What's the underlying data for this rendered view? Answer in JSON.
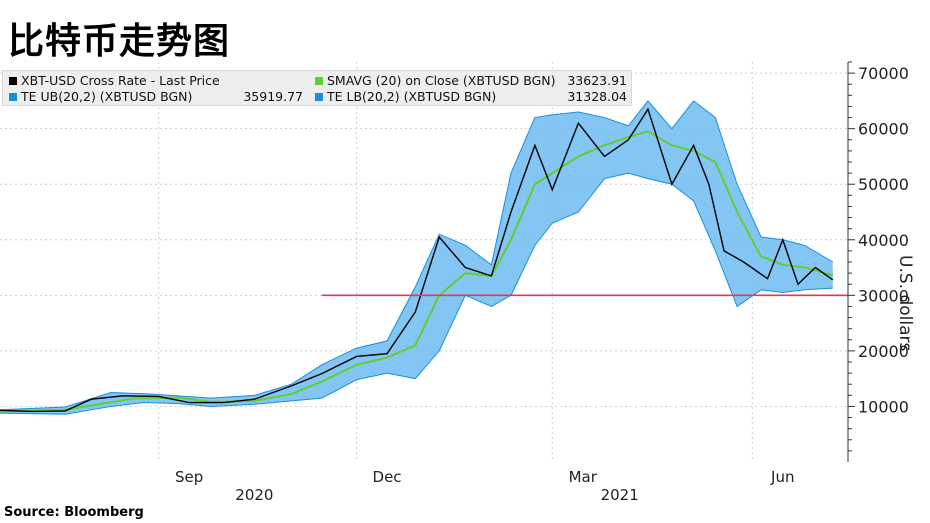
{
  "title": "比特币走势图",
  "source": "Source: Bloomberg",
  "legend": [
    {
      "name": "XBT-USD Cross Rate - Last Price",
      "value": "",
      "color": "#000000"
    },
    {
      "name": "SMAVG (20)  on Close (XBTUSD BGN)",
      "value": "33623.91",
      "color": "#66cc33"
    },
    {
      "name": "TE UB(20,2) (XBTUSD BGN)",
      "value": "35919.77",
      "color": "#1a8fe0"
    },
    {
      "name": "TE LB(20,2) (XBTUSD BGN)",
      "value": "31328.04",
      "color": "#1a8fe0"
    }
  ],
  "chart_data": {
    "type": "line",
    "title": "比特币走势图",
    "ylabel": "U.S. dollars",
    "ylim": [
      0,
      72000
    ],
    "yticks": [
      10000,
      20000,
      30000,
      40000,
      50000,
      60000,
      70000
    ],
    "ytick_labels": [
      "10000",
      "20000",
      "30000",
      "40000",
      "50000",
      "60000",
      "70000"
    ],
    "x_month_labels": [
      {
        "label": "Sep",
        "date": "2020-09-15"
      },
      {
        "label": "Dec",
        "date": "2020-12-15"
      },
      {
        "label": "Mar",
        "date": "2021-03-15"
      },
      {
        "label": "Jun",
        "date": "2021-06-15"
      }
    ],
    "x_year_labels": [
      {
        "label": "2020",
        "date": "2020-10-15"
      },
      {
        "label": "2021",
        "date": "2021-04-01"
      }
    ],
    "month_gridlines": [
      "2020-09-01",
      "2020-12-01",
      "2021-03-01",
      "2021-06-01"
    ],
    "x_range": [
      "2020-06-20",
      "2021-07-15"
    ],
    "reference_line": {
      "value": 30000,
      "color": "#e8355a",
      "from": "2020-11-15",
      "to": "2021-07-15"
    },
    "series": [
      {
        "name": "XBT-USD Cross Rate - Last Price",
        "color": "#000000",
        "dates": [
          "2020-06-20",
          "2020-07-05",
          "2020-07-20",
          "2020-08-01",
          "2020-08-15",
          "2020-09-01",
          "2020-09-15",
          "2020-10-01",
          "2020-10-15",
          "2020-11-01",
          "2020-11-15",
          "2020-12-01",
          "2020-12-15",
          "2020-12-28",
          "2021-01-08",
          "2021-01-20",
          "2021-02-01",
          "2021-02-10",
          "2021-02-21",
          "2021-03-01",
          "2021-03-13",
          "2021-03-25",
          "2021-04-05",
          "2021-04-14",
          "2021-04-25",
          "2021-05-05",
          "2021-05-12",
          "2021-05-19",
          "2021-05-28",
          "2021-06-08",
          "2021-06-15",
          "2021-06-22",
          "2021-06-30",
          "2021-07-08"
        ],
        "values": [
          9300,
          9100,
          9200,
          11300,
          11900,
          11800,
          10700,
          10700,
          11300,
          13700,
          15900,
          19000,
          19500,
          27000,
          40500,
          35000,
          33500,
          45000,
          57000,
          49000,
          61000,
          55000,
          58000,
          63500,
          50000,
          57000,
          50000,
          38000,
          36000,
          33000,
          40000,
          32000,
          35000,
          32800
        ]
      },
      {
        "name": "SMAVG (20)  on Close (XBTUSD BGN)",
        "color": "#66cc33",
        "dates": [
          "2020-06-20",
          "2020-07-20",
          "2020-08-20",
          "2020-09-10",
          "2020-09-25",
          "2020-10-15",
          "2020-11-01",
          "2020-11-15",
          "2020-12-01",
          "2020-12-15",
          "2020-12-28",
          "2021-01-08",
          "2021-01-20",
          "2021-02-01",
          "2021-02-10",
          "2021-02-21",
          "2021-03-01",
          "2021-03-13",
          "2021-03-25",
          "2021-04-05",
          "2021-04-14",
          "2021-04-25",
          "2021-05-05",
          "2021-05-15",
          "2021-05-25",
          "2021-06-05",
          "2021-06-15",
          "2021-06-25",
          "2021-07-08"
        ],
        "values": [
          9100,
          9400,
          11400,
          11600,
          10800,
          11000,
          12200,
          14500,
          17500,
          18800,
          21000,
          30000,
          34000,
          33500,
          40000,
          50000,
          52000,
          55000,
          57000,
          58500,
          59500,
          57000,
          56000,
          54000,
          45000,
          37000,
          35500,
          35000,
          33600
        ]
      },
      {
        "name": "TE UB(20,2) (XBTUSD BGN)",
        "color": "#1a8fe0",
        "dates": [
          "2020-06-20",
          "2020-07-20",
          "2020-08-10",
          "2020-08-25",
          "2020-09-10",
          "2020-09-25",
          "2020-10-15",
          "2020-11-01",
          "2020-11-15",
          "2020-12-01",
          "2020-12-15",
          "2020-12-28",
          "2021-01-08",
          "2021-01-20",
          "2021-02-01",
          "2021-02-10",
          "2021-02-21",
          "2021-03-01",
          "2021-03-13",
          "2021-03-25",
          "2021-04-05",
          "2021-04-14",
          "2021-04-25",
          "2021-05-05",
          "2021-05-15",
          "2021-05-25",
          "2021-06-05",
          "2021-06-15",
          "2021-06-25",
          "2021-07-08"
        ],
        "values": [
          9400,
          9900,
          12500,
          12300,
          11900,
          11500,
          12000,
          14000,
          17500,
          20500,
          21800,
          31500,
          41000,
          39000,
          35500,
          52000,
          62000,
          62500,
          63000,
          62000,
          60500,
          65000,
          60000,
          65000,
          62000,
          50000,
          40500,
          40000,
          39000,
          36000
        ]
      },
      {
        "name": "TE LB(20,2) (XBTUSD BGN)",
        "color": "#1a8fe0",
        "dates": [
          "2020-06-20",
          "2020-07-20",
          "2020-08-10",
          "2020-08-25",
          "2020-09-10",
          "2020-09-25",
          "2020-10-15",
          "2020-11-01",
          "2020-11-15",
          "2020-12-01",
          "2020-12-15",
          "2020-12-28",
          "2021-01-08",
          "2021-01-20",
          "2021-02-01",
          "2021-02-10",
          "2021-02-21",
          "2021-03-01",
          "2021-03-13",
          "2021-03-25",
          "2021-04-05",
          "2021-04-14",
          "2021-04-25",
          "2021-05-05",
          "2021-05-15",
          "2021-05-25",
          "2021-06-05",
          "2021-06-15",
          "2021-06-25",
          "2021-07-08"
        ],
        "values": [
          8800,
          8600,
          10000,
          10700,
          10500,
          10000,
          10400,
          11000,
          11500,
          14800,
          16000,
          15000,
          20000,
          30000,
          28000,
          30000,
          39000,
          43000,
          45000,
          51000,
          52000,
          51000,
          50000,
          47000,
          38000,
          28000,
          31000,
          30500,
          31000,
          31300
        ]
      }
    ]
  }
}
